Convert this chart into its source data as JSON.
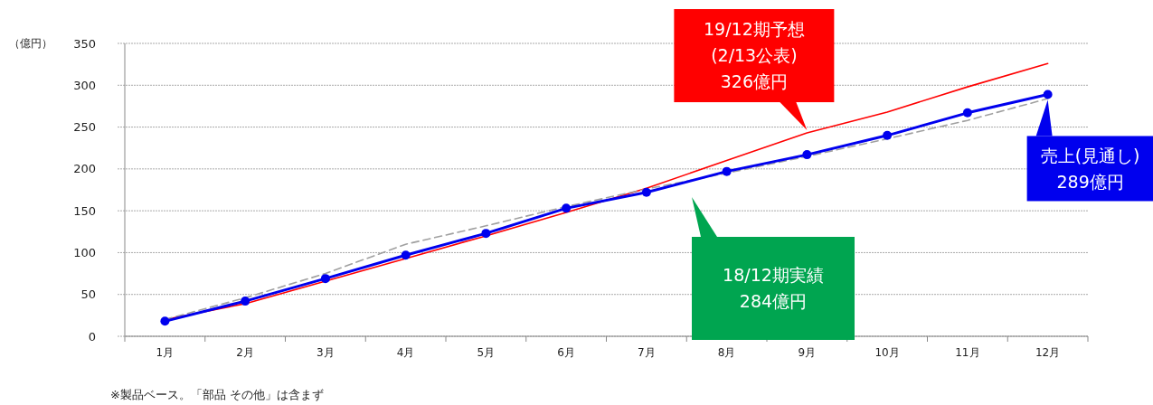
{
  "chart_data": {
    "type": "line",
    "ylabel": "（億円）",
    "categories": [
      "1月",
      "2月",
      "3月",
      "4月",
      "5月",
      "6月",
      "7月",
      "8月",
      "9月",
      "10月",
      "11月",
      "12月"
    ],
    "series": [
      {
        "color": "#ff0000",
        "values": [
          20,
          39,
          66,
          93,
          120,
          148,
          177,
          210,
          243,
          268,
          298,
          326
        ],
        "marker": "none",
        "line_style": "solid"
      },
      {
        "color": "#a0a0a0",
        "values": [
          20,
          46,
          75,
          110,
          132,
          155,
          176,
          195,
          215,
          236,
          258,
          284
        ],
        "marker": "none",
        "line_style": "dashed"
      },
      {
        "color": "#0000ee",
        "values": [
          18,
          42,
          69,
          97,
          123,
          153,
          172,
          197,
          217,
          240,
          267,
          289
        ],
        "marker": "circle",
        "line_style": "solid"
      }
    ],
    "ylim": [
      0,
      350
    ],
    "yticks": [
      0,
      50,
      100,
      150,
      200,
      250,
      300,
      350
    ],
    "grid": "y",
    "annotations": [
      {
        "text": "19/12期予想\n(2/13公表)\n326億円",
        "x": "9月",
        "y": 243
      },
      "18/12期実績\n284億円",
      {
        "text": "売上(見通し)\n289億円",
        "x": "12月",
        "y": 289
      },
      "※製品ベース。「部品 その他」は含まず"
    ]
  }
}
